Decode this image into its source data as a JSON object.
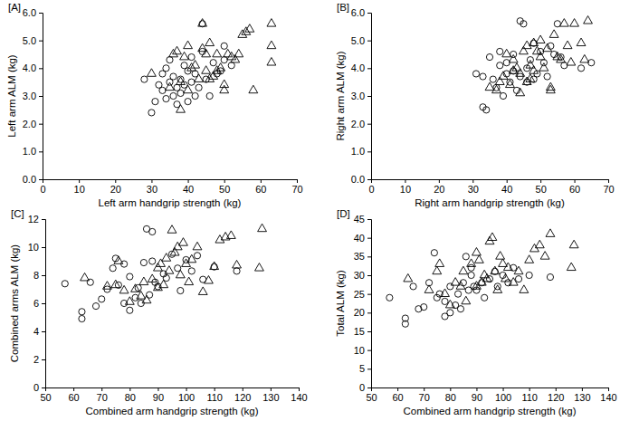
{
  "chart_data": [
    {
      "type": "scatter",
      "title": "[A]",
      "x_label": "Left arm handgrip strength (kg)",
      "y_label": "Left arm ALM (kg)",
      "xlim": [
        0,
        70
      ],
      "ylim": [
        0,
        6
      ],
      "xticks": [
        0,
        10,
        20,
        30,
        40,
        50,
        60,
        70
      ],
      "yticks": [
        {
          "value": 0,
          "label": "0.0"
        },
        {
          "value": 1,
          "label": "1.0"
        },
        {
          "value": 2,
          "label": "2.0"
        },
        {
          "value": 3,
          "label": "3.0"
        },
        {
          "value": 4,
          "label": "4.0"
        },
        {
          "value": 5,
          "label": "5.0"
        },
        {
          "value": 6,
          "label": "6.0"
        }
      ],
      "series": [
        {
          "marker": "circle",
          "color": "#000000",
          "x": [
            28,
            30,
            31,
            32,
            33,
            33,
            34,
            34,
            35,
            35,
            36,
            36,
            37,
            37,
            38,
            38,
            39,
            39,
            40,
            40,
            41,
            41,
            42,
            42,
            43,
            44,
            44,
            45,
            46,
            47,
            48,
            49,
            50,
            50,
            52
          ],
          "values": [
            3.6,
            2.4,
            2.8,
            3.4,
            3.2,
            3.8,
            4.0,
            2.9,
            3.5,
            4.3,
            3.0,
            3.7,
            3.3,
            2.7,
            3.6,
            3.1,
            4.1,
            3.4,
            2.8,
            3.9,
            3.5,
            4.4,
            3.0,
            3.8,
            3.3,
            5.6,
            4.6,
            3.6,
            3.0,
            4.2,
            3.8,
            3.9,
            4.8,
            4.3,
            4.1
          ]
        },
        {
          "marker": "triangle",
          "color": "#000000",
          "x": [
            30,
            35,
            36,
            37,
            38,
            38,
            39,
            40,
            40,
            41,
            42,
            43,
            44,
            45,
            45,
            46,
            47,
            48,
            48,
            49,
            50,
            50,
            51,
            52,
            53,
            54,
            55,
            56,
            57,
            58,
            63,
            63,
            63,
            44,
            46
          ],
          "values": [
            3.8,
            3.3,
            4.5,
            4.6,
            3.5,
            2.5,
            4.4,
            3.2,
            4.8,
            4.0,
            4.1,
            3.6,
            5.6,
            4.5,
            3.9,
            4.9,
            3.7,
            4.5,
            3.9,
            4.0,
            3.4,
            3.2,
            4.5,
            4.4,
            4.3,
            4.5,
            5.2,
            5.3,
            5.4,
            3.2,
            5.6,
            4.8,
            4.2,
            4.7,
            3.6
          ]
        }
      ]
    },
    {
      "type": "scatter",
      "title": "[B]",
      "x_label": "Right arm handgrip strength (kg)",
      "y_label": "Right arm ALM (kg)",
      "xlim": [
        0,
        70
      ],
      "ylim": [
        0,
        6
      ],
      "xticks": [
        0,
        10,
        20,
        30,
        40,
        50,
        60,
        70
      ],
      "yticks": [
        {
          "value": 0,
          "label": "0.0"
        },
        {
          "value": 1,
          "label": "1.0"
        },
        {
          "value": 2,
          "label": "2.0"
        },
        {
          "value": 3,
          "label": "3.0"
        },
        {
          "value": 4,
          "label": "4.0"
        },
        {
          "value": 5,
          "label": "5.0"
        },
        {
          "value": 6,
          "label": "6.0"
        }
      ],
      "series": [
        {
          "marker": "circle",
          "color": "#000000",
          "x": [
            31,
            33,
            33,
            34,
            35,
            36,
            37,
            38,
            38,
            39,
            40,
            40,
            41,
            42,
            42,
            43,
            44,
            44,
            45,
            46,
            46,
            47,
            48,
            48,
            49,
            50,
            51,
            52,
            53,
            54,
            55,
            56,
            57,
            62,
            65
          ],
          "values": [
            3.8,
            2.6,
            3.7,
            2.5,
            4.4,
            3.6,
            3.3,
            4.1,
            4.6,
            3.0,
            3.8,
            4.2,
            3.5,
            3.9,
            4.5,
            3.2,
            5.7,
            3.7,
            5.6,
            4.0,
            3.5,
            4.3,
            4.9,
            3.6,
            3.8,
            4.6,
            4.2,
            3.7,
            4.8,
            4.5,
            5.6,
            4.4,
            4.1,
            4.0,
            4.2
          ]
        },
        {
          "marker": "triangle",
          "color": "#000000",
          "x": [
            35,
            37,
            38,
            39,
            40,
            41,
            42,
            43,
            44,
            45,
            46,
            46,
            47,
            48,
            48,
            49,
            50,
            51,
            52,
            53,
            53,
            55,
            56,
            57,
            58,
            59,
            60,
            62,
            63,
            64,
            44,
            47,
            50,
            42,
            54
          ],
          "values": [
            3.3,
            3.2,
            3.5,
            3.7,
            4.5,
            3.4,
            4.3,
            4.0,
            3.8,
            4.6,
            3.5,
            4.8,
            4.1,
            4.9,
            3.9,
            4.6,
            5.0,
            4.0,
            4.7,
            3.3,
            3.2,
            4.4,
            4.3,
            5.6,
            4.8,
            4.2,
            5.6,
            4.9,
            4.3,
            5.7,
            3.1,
            3.6,
            4.4,
            3.9,
            5.2
          ]
        }
      ]
    },
    {
      "type": "scatter",
      "title": "[C]",
      "x_label": "Combined arm handgrip strength (kg)",
      "y_label": "Combined arms ALM (kg)",
      "xlim": [
        50,
        140
      ],
      "ylim": [
        0,
        12
      ],
      "xticks": [
        50,
        60,
        70,
        80,
        90,
        100,
        110,
        120,
        130,
        140
      ],
      "yticks": [
        0,
        2,
        4,
        6,
        8,
        10,
        12
      ],
      "series": [
        {
          "marker": "circle",
          "color": "#000000",
          "x": [
            57,
            63,
            63,
            66,
            68,
            70,
            72,
            74,
            75,
            76,
            78,
            78,
            80,
            80,
            82,
            83,
            84,
            85,
            86,
            87,
            88,
            88,
            89,
            90,
            92,
            93,
            95,
            97,
            98,
            100,
            102,
            104,
            106,
            110,
            118
          ],
          "values": [
            7.4,
            5.4,
            4.9,
            7.5,
            5.8,
            6.3,
            7.0,
            8.5,
            9.2,
            7.3,
            6.0,
            8.8,
            5.5,
            7.9,
            6.4,
            7.1,
            6.0,
            8.9,
            11.3,
            6.6,
            9.0,
            11.1,
            7.5,
            7.2,
            8.1,
            7.8,
            9.5,
            8.5,
            6.9,
            9.1,
            8.3,
            9.4,
            7.7,
            8.6,
            8.3
          ]
        },
        {
          "marker": "triangle",
          "color": "#000000",
          "x": [
            64,
            72,
            75,
            76,
            78,
            80,
            82,
            84,
            85,
            86,
            88,
            90,
            90,
            91,
            92,
            93,
            94,
            95,
            96,
            97,
            98,
            99,
            100,
            101,
            102,
            104,
            106,
            108,
            110,
            112,
            114,
            116,
            118,
            126,
            127
          ],
          "values": [
            7.8,
            7.2,
            7.3,
            9.0,
            6.9,
            6.1,
            7.0,
            6.5,
            7.5,
            6.2,
            7.7,
            8.5,
            7.1,
            8.8,
            7.3,
            9.2,
            8.3,
            11.2,
            9.6,
            10.0,
            8.0,
            10.3,
            8.8,
            7.5,
            9.1,
            10.0,
            6.8,
            7.6,
            8.6,
            10.5,
            10.7,
            10.8,
            8.7,
            8.5,
            11.3
          ]
        }
      ]
    },
    {
      "type": "scatter",
      "title": "[D]",
      "x_label": "Combined arm handgrip strength (kg)",
      "y_label": "Total ALM (kg)",
      "xlim": [
        50,
        140
      ],
      "ylim": [
        0,
        45
      ],
      "xticks": [
        50,
        60,
        70,
        80,
        90,
        100,
        110,
        120,
        130,
        140
      ],
      "yticks": [
        0,
        5,
        10,
        15,
        20,
        25,
        30,
        35,
        40,
        45
      ],
      "series": [
        {
          "marker": "circle",
          "color": "#000000",
          "x": [
            57,
            63,
            63,
            66,
            68,
            70,
            72,
            74,
            75,
            76,
            78,
            78,
            80,
            80,
            82,
            83,
            84,
            85,
            86,
            87,
            88,
            88,
            89,
            90,
            92,
            93,
            95,
            97,
            98,
            100,
            102,
            104,
            106,
            110,
            118
          ],
          "values": [
            24,
            18.5,
            17,
            27,
            21,
            21.5,
            28,
            36,
            24,
            25,
            19,
            23,
            20,
            27,
            22,
            25,
            21,
            28,
            35,
            26,
            30,
            32,
            27,
            26,
            28,
            24,
            29,
            31,
            27,
            30,
            28,
            32,
            29,
            30,
            29.5
          ]
        },
        {
          "marker": "triangle",
          "color": "#000000",
          "x": [
            64,
            72,
            75,
            76,
            78,
            80,
            82,
            84,
            85,
            86,
            88,
            90,
            90,
            91,
            92,
            93,
            94,
            95,
            96,
            97,
            98,
            99,
            100,
            101,
            102,
            104,
            106,
            108,
            110,
            112,
            114,
            116,
            118,
            126,
            127
          ],
          "values": [
            29,
            26,
            31,
            33,
            25,
            22,
            28,
            27,
            31,
            23,
            33,
            36,
            27,
            34,
            28,
            30,
            29,
            39,
            40,
            31,
            26,
            35,
            33,
            29,
            32,
            28,
            31,
            26,
            34,
            37,
            38,
            35,
            41,
            32,
            38
          ]
        }
      ]
    }
  ]
}
